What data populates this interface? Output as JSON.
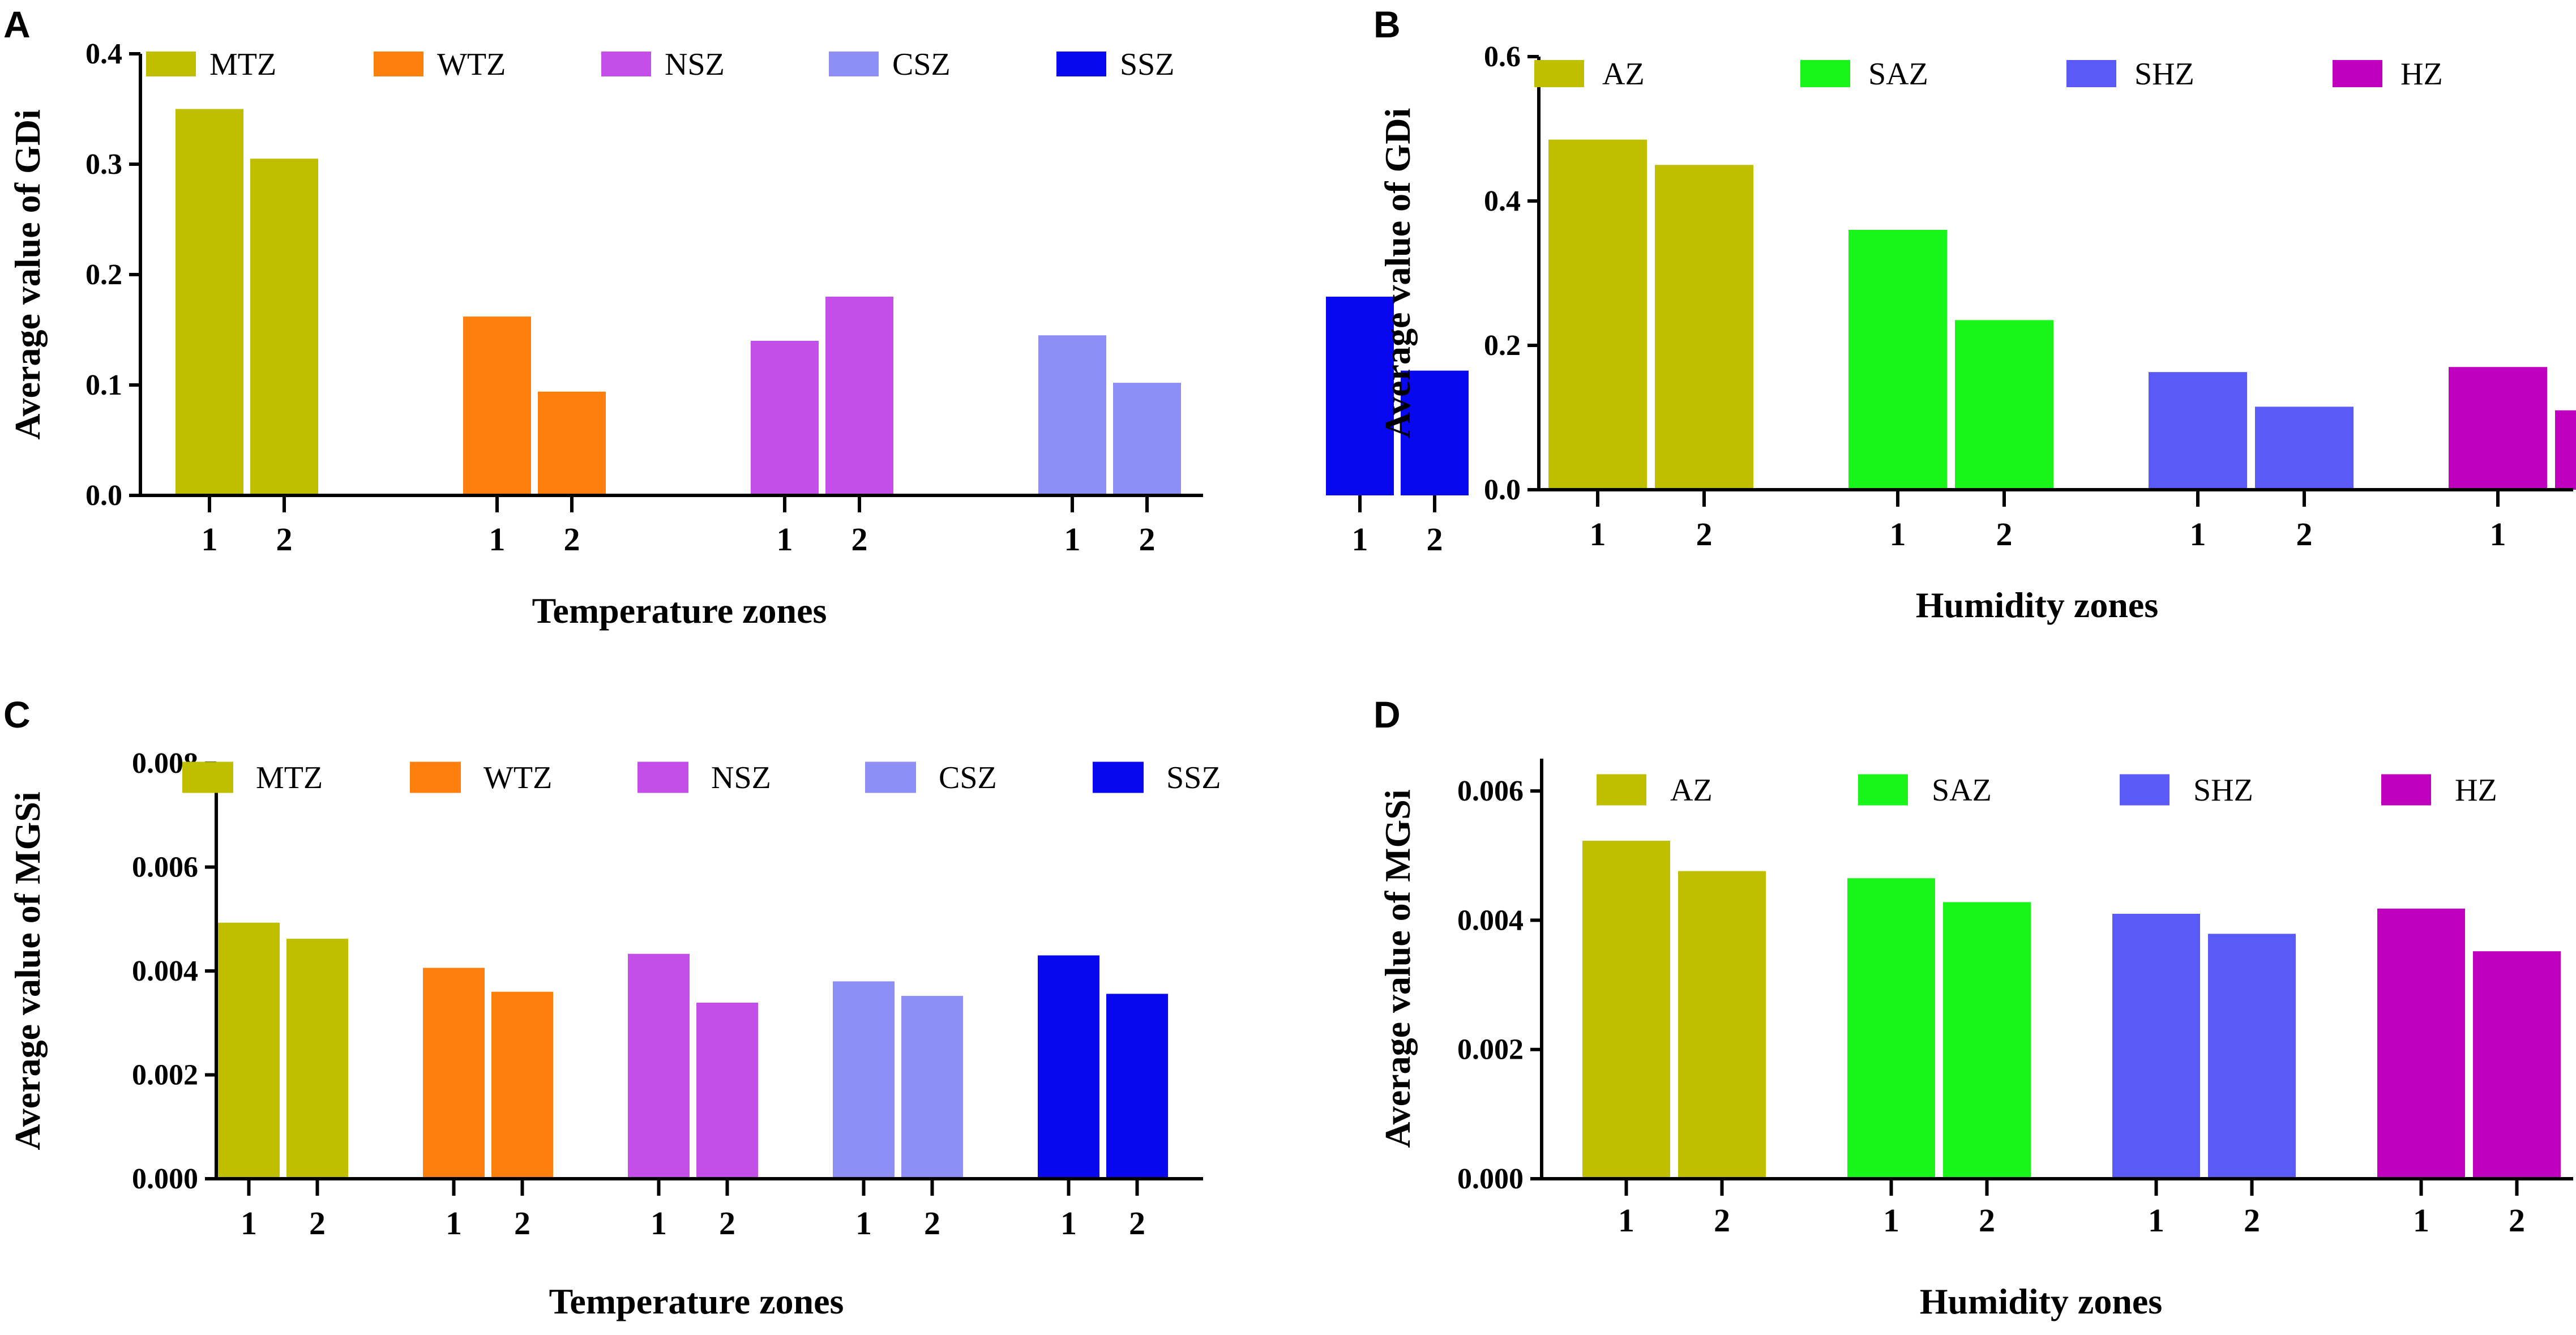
{
  "chart_data": [
    {
      "panel": "A",
      "type": "bar",
      "ylabel": "Average value of GDi",
      "xlabel": "Temperature zones",
      "ylim": [
        0,
        0.4
      ],
      "yticks": [
        "0.0",
        "0.1",
        "0.2",
        "0.3",
        "0.4"
      ],
      "ytick_values": [
        0,
        0.1,
        0.2,
        0.3,
        0.4
      ],
      "categories": [
        "1",
        "2"
      ],
      "series": [
        {
          "name": "MTZ",
          "color": "#bfbf00",
          "values": [
            0.35,
            0.305
          ]
        },
        {
          "name": "WTZ",
          "color": "#ff7f0e",
          "values": [
            0.162,
            0.094
          ]
        },
        {
          "name": "NSZ",
          "color": "#c44fe8",
          "values": [
            0.14,
            0.18
          ]
        },
        {
          "name": "CSZ",
          "color": "#8e8ef7",
          "values": [
            0.145,
            0.102
          ]
        },
        {
          "name": "SSZ",
          "color": "#0808f0",
          "values": [
            0.18,
            0.113
          ]
        }
      ]
    },
    {
      "panel": "B",
      "type": "bar",
      "ylabel": "Average value of GDi",
      "xlabel": "Humidity zones",
      "ylim": [
        0,
        0.6
      ],
      "yticks": [
        "0.0",
        "0.2",
        "0.4",
        "0.6"
      ],
      "ytick_values": [
        0,
        0.2,
        0.4,
        0.6
      ],
      "categories": [
        "1",
        "2"
      ],
      "series": [
        {
          "name": "AZ",
          "color": "#bfbf00",
          "values": [
            0.485,
            0.45
          ]
        },
        {
          "name": "SAZ",
          "color": "#19f519",
          "values": [
            0.36,
            0.235
          ]
        },
        {
          "name": "SHZ",
          "color": "#5a5af7",
          "values": [
            0.163,
            0.115
          ]
        },
        {
          "name": "HZ",
          "color": "#bf00bf",
          "values": [
            0.17,
            0.11
          ]
        }
      ]
    },
    {
      "panel": "C",
      "type": "bar",
      "ylabel": "Average value of MGSi",
      "xlabel": "Temperature zones",
      "ylim": [
        0,
        0.008
      ],
      "yticks": [
        "0.000",
        "0.002",
        "0.004",
        "0.006",
        "0.008"
      ],
      "ytick_values": [
        0,
        0.002,
        0.004,
        0.006,
        0.008
      ],
      "categories": [
        "1",
        "2"
      ],
      "series": [
        {
          "name": "MTZ",
          "color": "#bfbf00",
          "values": [
            0.00493,
            0.00462
          ]
        },
        {
          "name": "WTZ",
          "color": "#ff7f0e",
          "values": [
            0.00406,
            0.0036
          ]
        },
        {
          "name": "NSZ",
          "color": "#c44fe8",
          "values": [
            0.00433,
            0.00339
          ]
        },
        {
          "name": "CSZ",
          "color": "#8e8ef7",
          "values": [
            0.0038,
            0.00352
          ]
        },
        {
          "name": "SSZ",
          "color": "#0808f0",
          "values": [
            0.0043,
            0.00356
          ]
        }
      ]
    },
    {
      "panel": "D",
      "type": "bar",
      "ylabel": "Average value of MGSi",
      "xlabel": "Humidity zones",
      "ylim": [
        0,
        0.0065
      ],
      "yticks": [
        "0.000",
        "0.002",
        "0.004",
        "0.006"
      ],
      "ytick_values": [
        0,
        0.002,
        0.004,
        0.006
      ],
      "categories": [
        "1",
        "2"
      ],
      "series": [
        {
          "name": "AZ",
          "color": "#bfbf00",
          "values": [
            0.00523,
            0.00476
          ]
        },
        {
          "name": "SAZ",
          "color": "#19f519",
          "values": [
            0.00465,
            0.00428
          ]
        },
        {
          "name": "SHZ",
          "color": "#5a5af7",
          "values": [
            0.0041,
            0.00379
          ]
        },
        {
          "name": "HZ",
          "color": "#bf00bf",
          "values": [
            0.00418,
            0.00352
          ]
        }
      ]
    }
  ]
}
